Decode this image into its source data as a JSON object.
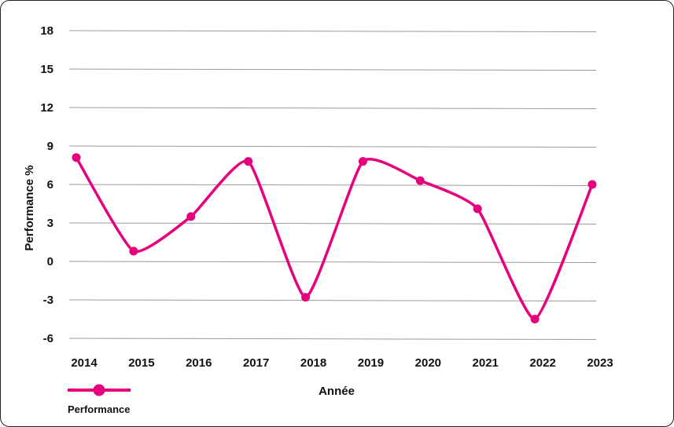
{
  "chart_data": {
    "type": "line",
    "title": "",
    "xlabel": "Année",
    "ylabel": "Performance %",
    "categories": [
      "2014",
      "2015",
      "2016",
      "2017",
      "2018",
      "2019",
      "2020",
      "2021",
      "2022",
      "2023"
    ],
    "series": [
      {
        "name": "Performance",
        "values": [
          8.1,
          0.8,
          3.5,
          7.8,
          -2.8,
          7.8,
          6.3,
          4.1,
          -4.5,
          6.0
        ],
        "color": "#e6007e"
      }
    ],
    "ylim": [
      -6,
      18
    ],
    "yticks": [
      "18",
      "15",
      "12",
      "9",
      "6",
      "3",
      "0",
      "-3",
      "-6"
    ],
    "ytick_values": [
      18,
      15,
      12,
      9,
      6,
      3,
      0,
      -3,
      -6
    ],
    "grid": true,
    "smooth": true,
    "legend_position": "bottom-left"
  }
}
